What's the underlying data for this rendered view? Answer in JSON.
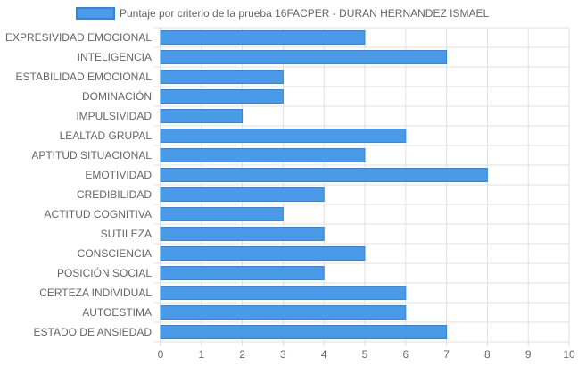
{
  "colors": {
    "bar_fill": "#4a9ae8",
    "bar_stroke": "#2f86dd",
    "grid": "#e0e0e0",
    "axis": "#c8c8c8",
    "text": "#666666"
  },
  "chart_data": {
    "type": "bar",
    "orientation": "horizontal",
    "categories": [
      "EXPRESIVIDAD EMOCIONAL",
      "INTELIGENCIA",
      "ESTABILIDAD EMOCIONAL",
      "DOMINACIÓN",
      "IMPULSIVIDAD",
      "LEALTAD GRUPAL",
      "APTITUD SITUACIONAL",
      "EMOTIVIDAD",
      "CREDIBILIDAD",
      "ACTITUD COGNITIVA",
      "SUTILEZA",
      "CONSCIENCIA",
      "POSICIÓN SOCIAL",
      "CERTEZA INDIVIDUAL",
      "AUTOESTIMA",
      "ESTADO DE ANSIEDAD"
    ],
    "series": [
      {
        "name": "Puntaje por criterio de la prueba 16FACPER - DURAN HERNANDEZ ISMAEL",
        "values": [
          5,
          7,
          3,
          3,
          2,
          6,
          5,
          8,
          4,
          3,
          4,
          5,
          4,
          6,
          6,
          7
        ]
      }
    ],
    "xlim": [
      0,
      10
    ],
    "xticks": [
      0,
      1,
      2,
      3,
      4,
      5,
      6,
      7,
      8,
      9,
      10
    ],
    "grid": true,
    "legend": "top-center"
  }
}
